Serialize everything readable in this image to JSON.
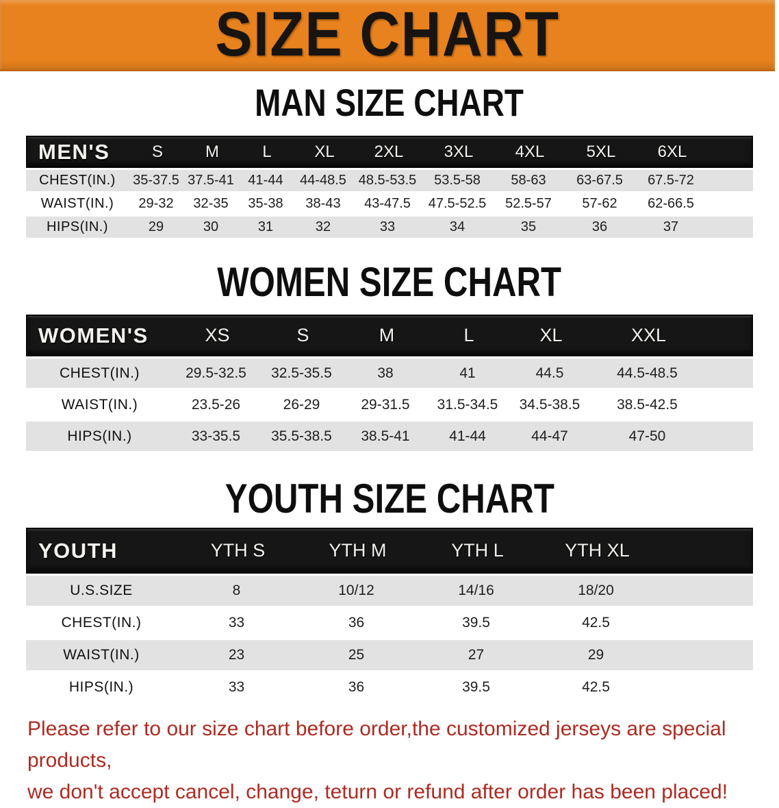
{
  "banner": {
    "title": "SIZE CHART"
  },
  "men": {
    "title": "MAN SIZE CHART",
    "header": [
      "MEN'S",
      "S",
      "M",
      "L",
      "XL",
      "2XL",
      "3XL",
      "4XL",
      "5XL",
      "6XL"
    ],
    "rows": [
      {
        "label": "CHEST(IN.)",
        "values": [
          "35-37.5",
          "37.5-41",
          "41-44",
          "44-48.5",
          "48.5-53.5",
          "53.5-58",
          "58-63",
          "63-67.5",
          "67.5-72"
        ]
      },
      {
        "label": "WAIST(IN.)",
        "values": [
          "29-32",
          "32-35",
          "35-38",
          "38-43",
          "43-47.5",
          "47.5-52.5",
          "52.5-57",
          "57-62",
          "62-66.5"
        ]
      },
      {
        "label": "HIPS(IN.)",
        "values": [
          "29",
          "30",
          "31",
          "32",
          "33",
          "34",
          "35",
          "36",
          "37"
        ]
      }
    ]
  },
  "women": {
    "title": "WOMEN SIZE CHART",
    "header": [
      "WOMEN'S",
      "XS",
      "S",
      "M",
      "L",
      "XL",
      "XXL"
    ],
    "rows": [
      {
        "label": "CHEST(IN.)",
        "values": [
          "29.5-32.5",
          "32.5-35.5",
          "38",
          "41",
          "44.5",
          "44.5-48.5"
        ]
      },
      {
        "label": "WAIST(IN.)",
        "values": [
          "23.5-26",
          "26-29",
          "29-31.5",
          "31.5-34.5",
          "34.5-38.5",
          "38.5-42.5"
        ]
      },
      {
        "label": "HIPS(IN.)",
        "values": [
          "33-35.5",
          "35.5-38.5",
          "38.5-41",
          "41-44",
          "44-47",
          "47-50"
        ]
      }
    ]
  },
  "youth": {
    "title": "YOUTH SIZE CHART",
    "header": [
      "YOUTH",
      "YTH S",
      "YTH M",
      "YTH L",
      "YTH XL"
    ],
    "rows": [
      {
        "label": "U.S.SIZE",
        "values": [
          "8",
          "10/12",
          "14/16",
          "18/20"
        ]
      },
      {
        "label": "CHEST(IN.)",
        "values": [
          "33",
          "36",
          "39.5",
          "42.5"
        ]
      },
      {
        "label": "WAIST(IN.)",
        "values": [
          "23",
          "25",
          "27",
          "29"
        ]
      },
      {
        "label": "HIPS(IN.)",
        "values": [
          "33",
          "36",
          "39.5",
          "42.5"
        ]
      }
    ]
  },
  "disclaimer": {
    "line1": "Please refer to our size chart before order,the customized jerseys are special products,",
    "line2": "we don't accept cancel, change, teturn or refund after order has been placed!"
  },
  "colors": {
    "banner_bg": "#E8821E",
    "banner_border": "#C1670E",
    "header_bar_bg": "#161616",
    "row_gray": "#E2E2E2",
    "disclaimer_red": "#AD2B21"
  }
}
